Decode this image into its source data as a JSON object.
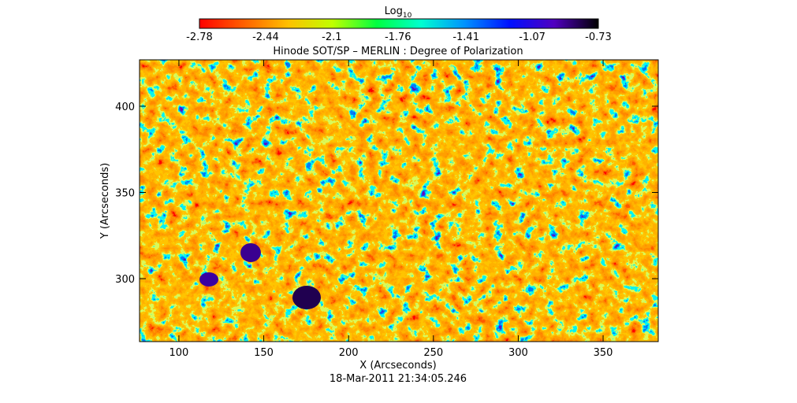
{
  "chart_data": {
    "type": "heatmap",
    "colorbar_title": "Log",
    "colorbar_title_subscript": "10",
    "title": "Hinode SOT/SP – MERLIN : Degree of Polarization",
    "x_label": "X (Arcseconds)",
    "y_label": "Y (Arcseconds)",
    "date": "18-Mar-2011 21:34:05.246",
    "xlim": [
      76.8,
      382.5
    ],
    "xticks": [
      100,
      150,
      200,
      250,
      300,
      350
    ],
    "ylim": [
      263.5,
      426.9
    ],
    "yticks": [
      300,
      350,
      400
    ],
    "clim": [
      -2.78,
      -0.73
    ],
    "cticks": [
      -2.78,
      -2.44,
      -2.1,
      -1.76,
      -1.41,
      -1.07,
      -0.73
    ],
    "colormap": [
      "#ff0000",
      "#ff6000",
      "#ffc000",
      "#c0ff00",
      "#00ff40",
      "#00ffd0",
      "#0090ff",
      "#0010ff",
      "#5000c0",
      "#000000"
    ]
  }
}
